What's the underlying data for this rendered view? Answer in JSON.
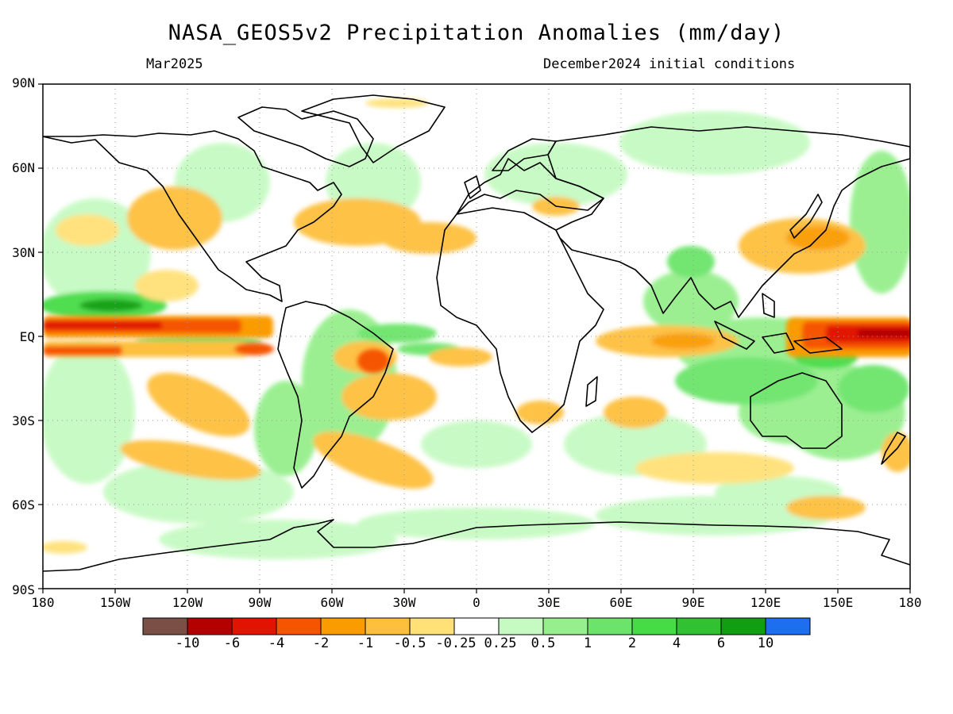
{
  "title": "NASA_GEOS5v2 Precipitation Anomalies (mm/day)",
  "subtitle_left": "Mar2025",
  "subtitle_right": "December2024 initial conditions",
  "lat_labels": [
    "90N",
    "60N",
    "30N",
    "EQ",
    "30S",
    "60S",
    "90S"
  ],
  "lon_labels": [
    "180",
    "150W",
    "120W",
    "90W",
    "60W",
    "30W",
    "0",
    "30E",
    "60E",
    "90E",
    "120E",
    "150E",
    "180"
  ],
  "colorbar": {
    "colors": [
      "#7a4f46",
      "#b30000",
      "#e01400",
      "#f55500",
      "#fa9b00",
      "#fdbf3c",
      "#ffe178",
      "#ffffff",
      "#c6fac2",
      "#96ef8c",
      "#6ce46b",
      "#46dc46",
      "#31c131",
      "#119f11",
      "#1e6ef0"
    ],
    "labels": [
      "-10",
      "-6",
      "-4",
      "-2",
      "-1",
      "-0.5",
      "-0.25",
      "0.25",
      "0.5",
      "1",
      "2",
      "4",
      "6",
      "10"
    ]
  }
}
